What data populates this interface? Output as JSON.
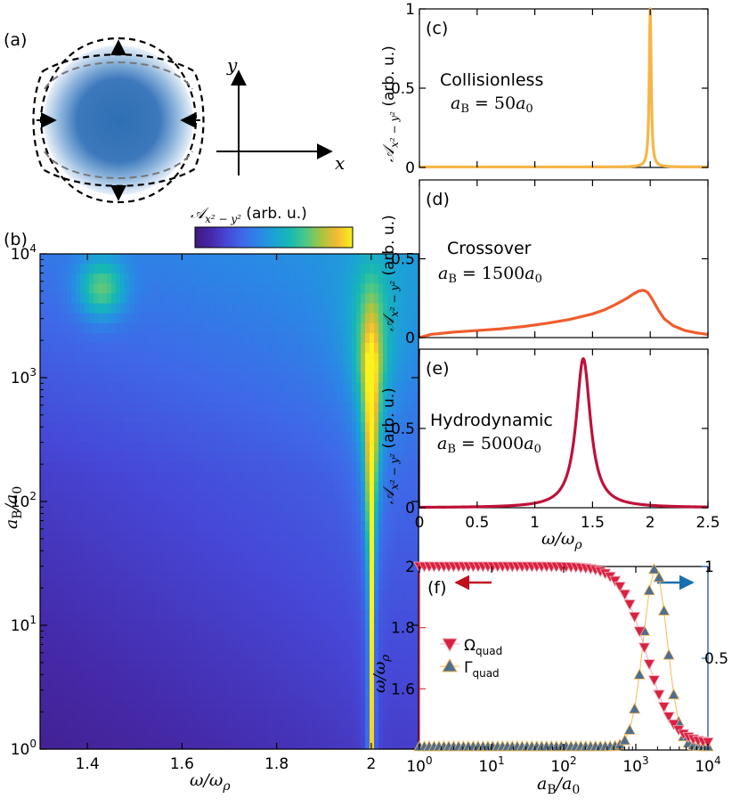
{
  "panel_labels": {
    "a": "(a)",
    "b": "(b)",
    "c": "(c)",
    "d": "(d)",
    "e": "(e)",
    "f": "(f)"
  },
  "diagram": {
    "x_label": "x",
    "y_label": "y"
  },
  "colors": {
    "c_line": "#f7b547",
    "d_line": "#f05c2c",
    "e_line": "#c0103a",
    "omega_marker": "#d8223f",
    "gamma_marker": "#4d6e91",
    "left_arrow": "#c0101e",
    "right_arrow": "#1a6fb0",
    "right_axis": "#2a5fa8",
    "left_axis": "#d9363e"
  },
  "chart_data": [
    {
      "panel": "b",
      "type": "heatmap",
      "xlabel": "ω/ω_ρ",
      "ylabel": "a_B/a_0",
      "xlim": [
        1.3,
        2.1
      ],
      "ylim_log10": [
        0,
        4
      ],
      "x_ticks": [
        "1.4",
        "1.6",
        "1.8",
        "2"
      ],
      "x_tick_values": [
        1.4,
        1.6,
        1.8,
        2.0
      ],
      "y_ticks": [
        {
          "base": "10",
          "exp": "0"
        },
        {
          "base": "10",
          "exp": "1"
        },
        {
          "base": "10",
          "exp": "2"
        },
        {
          "base": "10",
          "exp": "3"
        },
        {
          "base": "10",
          "exp": "4"
        }
      ],
      "y_tick_exponents": [
        0,
        1,
        2,
        3,
        4
      ],
      "colorbar_label": "𝒜_{x²−y²} (arb. u.)",
      "colormap": "viridis"
    },
    {
      "panel": "c",
      "type": "line",
      "ylabel": "𝒜_{x²−y²} (arb. u.)",
      "annotation_title": "Collisionless",
      "annotation_value": "50",
      "xlim": [
        0,
        2.5
      ],
      "ylim": [
        0,
        1
      ],
      "y_ticks": [
        "0",
        "0.5",
        "1"
      ],
      "y_tick_values": [
        0,
        0.5,
        1
      ],
      "peak_center": 2.0,
      "peak_width": 0.01,
      "peak_height": 1.0,
      "baseline": 0.003
    },
    {
      "panel": "d",
      "type": "line",
      "ylabel": "𝒜_{x²−y²} (arb. u.)",
      "annotation_title": "Crossover",
      "annotation_value": "1500",
      "xlim": [
        0,
        2.5
      ],
      "ylim": [
        0,
        1
      ],
      "y_ticks": [
        "0",
        "0.5"
      ],
      "y_tick_values": [
        0,
        0.5
      ],
      "curve_x": [
        0,
        0.1,
        0.3,
        0.5,
        0.7,
        0.9,
        1.1,
        1.3,
        1.5,
        1.6,
        1.7,
        1.8,
        1.85,
        1.9,
        1.93,
        1.95,
        1.98,
        2.02,
        2.07,
        2.12,
        2.2,
        2.3,
        2.4,
        2.5
      ],
      "curve_y": [
        0.0,
        0.02,
        0.035,
        0.045,
        0.055,
        0.07,
        0.09,
        0.115,
        0.15,
        0.175,
        0.21,
        0.25,
        0.275,
        0.295,
        0.3,
        0.298,
        0.285,
        0.24,
        0.175,
        0.12,
        0.075,
        0.045,
        0.03,
        0.02
      ]
    },
    {
      "panel": "e",
      "type": "line",
      "ylabel": "𝒜_{x²−y²} (arb. u.)",
      "annotation_title": "Hydrodynamic",
      "annotation_value": "5000",
      "xlabel": "ω/ω_ρ",
      "xlim": [
        0,
        2.5
      ],
      "ylim": [
        0,
        1
      ],
      "x_ticks": [
        "0",
        "0.5",
        "1",
        "1.5",
        "2",
        "2.5"
      ],
      "x_tick_values": [
        0,
        0.5,
        1,
        1.5,
        2,
        2.5
      ],
      "y_ticks": [
        "0",
        "0.5"
      ],
      "y_tick_values": [
        0,
        0.5
      ],
      "peak_center": 1.42,
      "peak_width": 0.075,
      "peak_height": 0.94,
      "baseline": 0.0
    },
    {
      "panel": "f",
      "type": "scatter",
      "xlabel": "a_B/a_0",
      "ylabel": "ω/ω_ρ",
      "xlim_log10": [
        0,
        4
      ],
      "ylim_left": [
        1.4,
        2.0
      ],
      "ylim_right": [
        0,
        1
      ],
      "x_ticks": [
        {
          "base": "10",
          "exp": "0"
        },
        {
          "base": "10",
          "exp": "1"
        },
        {
          "base": "10",
          "exp": "2"
        },
        {
          "base": "10",
          "exp": "3"
        },
        {
          "base": "10",
          "exp": "4"
        }
      ],
      "x_tick_exponents": [
        0,
        1,
        2,
        3,
        4
      ],
      "y_left_ticks": [
        "1.6",
        "1.8",
        "2"
      ],
      "y_left_tick_values": [
        1.6,
        1.8,
        2.0
      ],
      "y_right_ticks": [
        "0.5",
        "1"
      ],
      "y_right_tick_values": [
        0.5,
        1
      ],
      "series": [
        {
          "name": "Ω_quad",
          "axis": "left",
          "marker": "triangle-down",
          "log10_a_start": 0.0,
          "log10_a_end": 4.0,
          "count": 60,
          "high": 2.0,
          "low": 1.42,
          "transition_log10": 3.15,
          "transition_width": 0.18
        },
        {
          "name": "Γ_quad",
          "axis": "right",
          "marker": "triangle-up",
          "log10_a_start": 0.0,
          "log10_a_end": 4.0,
          "count": 60,
          "peak_log10": 3.27,
          "peak": 0.97,
          "peak_width": 0.23,
          "baseline": 0.02
        }
      ]
    }
  ]
}
